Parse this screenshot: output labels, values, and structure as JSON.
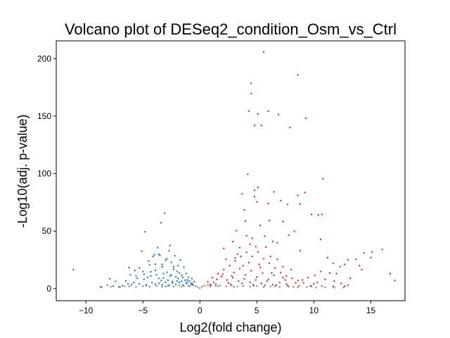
{
  "chart_data": {
    "type": "scatter",
    "title": "Volcano plot of DESeq2_condition_Osm_vs_Ctrl",
    "xlabel": "Log2(fold change)",
    "ylabel": "-Log10(adj. p-value)",
    "xlim": [
      -12.6,
      18.0
    ],
    "ylim": [
      -10.5,
      215.5
    ],
    "xticks": [
      -10,
      -5,
      0,
      5,
      10,
      15
    ],
    "yticks": [
      0,
      50,
      100,
      150,
      200
    ],
    "grid": false,
    "legend": "none",
    "colors": {
      "down": "#1f77b4",
      "up": "#d62728",
      "ns": "#808080"
    },
    "series": [
      {
        "key": "ns",
        "color": "#808080",
        "points": [
          [
            -8.6,
            1.0
          ],
          [
            -7.8,
            1.5
          ],
          [
            -7.0,
            1.2
          ],
          [
            -6.2,
            1.8
          ],
          [
            -5.6,
            1.4
          ],
          [
            -5.0,
            2.0
          ],
          [
            -4.4,
            1.5
          ],
          [
            -3.8,
            2.2
          ],
          [
            -3.3,
            1.6
          ],
          [
            -2.8,
            2.5
          ],
          [
            -2.3,
            1.9
          ],
          [
            -1.8,
            2.7
          ],
          [
            -1.4,
            2.2
          ],
          [
            -1.0,
            2.8
          ],
          [
            -0.7,
            3.0
          ],
          [
            -0.4,
            2.3
          ],
          [
            -0.2,
            1.4
          ],
          [
            0.0,
            0.5
          ],
          [
            0.2,
            1.6
          ],
          [
            0.4,
            2.5
          ],
          [
            0.7,
            3.1
          ],
          [
            1.0,
            2.9
          ],
          [
            1.4,
            2.4
          ],
          [
            1.8,
            2.8
          ],
          [
            2.3,
            2.0
          ],
          [
            2.8,
            2.6
          ],
          [
            3.3,
            1.8
          ],
          [
            3.8,
            2.3
          ],
          [
            4.4,
            1.6
          ],
          [
            5.0,
            2.1
          ],
          [
            5.6,
            1.4
          ],
          [
            6.2,
            1.9
          ],
          [
            7.0,
            1.3
          ],
          [
            7.8,
            1.7
          ],
          [
            8.6,
            1.1
          ],
          [
            9.4,
            1.4
          ],
          [
            10.2,
            0.9
          ],
          [
            11.0,
            1.2
          ],
          [
            11.8,
            0.8
          ],
          [
            12.6,
            1.0
          ],
          [
            -6.6,
            2.1
          ],
          [
            -4.7,
            2.4
          ],
          [
            -3.0,
            2.0
          ],
          [
            -1.6,
            1.5
          ],
          [
            -0.9,
            1.9
          ],
          [
            0.9,
            1.7
          ],
          [
            1.6,
            2.0
          ],
          [
            3.0,
            1.4
          ],
          [
            4.7,
            2.4
          ],
          [
            6.6,
            2.0
          ],
          [
            8.2,
            1.6
          ],
          [
            9.8,
            1.8
          ]
        ]
      },
      {
        "key": "down",
        "color": "#1f77b4",
        "points": [
          [
            -11.1,
            16.5
          ],
          [
            -8.7,
            1.5
          ],
          [
            -8.1,
            3.0
          ],
          [
            -7.9,
            8.4
          ],
          [
            -7.4,
            6.4
          ],
          [
            -7.1,
            1.6
          ],
          [
            -6.5,
            6.5
          ],
          [
            -6.3,
            4.0
          ],
          [
            -6.2,
            18.3
          ],
          [
            -5.8,
            5.3
          ],
          [
            -5.7,
            15.8
          ],
          [
            -5.5,
            9.0
          ],
          [
            -5.1,
            32.6
          ],
          [
            -5.0,
            14.8
          ],
          [
            -4.9,
            12.4
          ],
          [
            -4.8,
            49.4
          ],
          [
            -4.6,
            9.7
          ],
          [
            -4.4,
            20.6
          ],
          [
            -4.3,
            14.6
          ],
          [
            -4.0,
            29.5
          ],
          [
            -3.9,
            21.2
          ],
          [
            -3.8,
            11.9
          ],
          [
            -3.7,
            35.6
          ],
          [
            -3.6,
            8.9
          ],
          [
            -3.5,
            28.9
          ],
          [
            -3.4,
            57.2
          ],
          [
            -3.3,
            18.9
          ],
          [
            -3.2,
            9.2
          ],
          [
            -3.1,
            65.6
          ],
          [
            -3.0,
            24.7
          ],
          [
            -2.9,
            14.1
          ],
          [
            -2.8,
            7.4
          ],
          [
            -2.7,
            32.8
          ],
          [
            -2.6,
            11.1
          ],
          [
            -2.5,
            22.8
          ],
          [
            -2.4,
            6.3
          ],
          [
            -2.3,
            19.1
          ],
          [
            -2.2,
            28.6
          ],
          [
            -2.1,
            10.4
          ],
          [
            -2.0,
            15.0
          ],
          [
            -1.9,
            8.8
          ],
          [
            -1.8,
            13.6
          ],
          [
            -1.7,
            24.9
          ],
          [
            -1.6,
            6.4
          ],
          [
            -1.5,
            9.8
          ],
          [
            -1.4,
            18.6
          ],
          [
            -1.3,
            7.2
          ],
          [
            -1.2,
            13.2
          ],
          [
            -1.1,
            5.6
          ],
          [
            -1.0,
            9.8
          ],
          [
            -0.9,
            6.6
          ],
          [
            -0.8,
            4.3
          ],
          [
            -0.7,
            8.8
          ],
          [
            -0.6,
            3.4
          ],
          [
            -0.5,
            6.0
          ],
          [
            -4.2,
            5.1
          ],
          [
            -3.9,
            3.8
          ],
          [
            -3.6,
            4.6
          ],
          [
            -3.3,
            3.2
          ],
          [
            -3.0,
            5.4
          ],
          [
            -2.7,
            2.9
          ],
          [
            -2.4,
            4.8
          ],
          [
            -2.1,
            3.6
          ],
          [
            -1.8,
            5.4
          ],
          [
            -1.5,
            3.2
          ],
          [
            -1.2,
            4.5
          ],
          [
            -5.3,
            4.1
          ],
          [
            -4.7,
            3.3
          ],
          [
            -6.0,
            3.2
          ],
          [
            -6.8,
            2.4
          ],
          [
            -7.6,
            2.2
          ],
          [
            -2.6,
            37.5
          ],
          [
            -3.6,
            30.0
          ],
          [
            -4.1,
            28.0
          ],
          [
            -2.9,
            26.0
          ],
          [
            -3.3,
            21.0
          ],
          [
            -4.5,
            24.0
          ],
          [
            -2.3,
            17.0
          ],
          [
            -5.3,
            18.0
          ],
          [
            -3.9,
            16.0
          ],
          [
            -1.9,
            20.0
          ],
          [
            -2.5,
            12.0
          ],
          [
            -4.3,
            11.0
          ],
          [
            -1.6,
            11.5
          ],
          [
            -3.2,
            13.0
          ],
          [
            -5.6,
            11.0
          ],
          [
            -6.1,
            12.0
          ],
          [
            -4.9,
            8.0
          ],
          [
            -3.4,
            7.0
          ],
          [
            -2.0,
            6.5
          ],
          [
            -1.1,
            7.5
          ],
          [
            -0.7,
            4.5
          ]
        ]
      },
      {
        "key": "up",
        "color": "#d62728",
        "points": [
          [
            5.6,
            205.8
          ],
          [
            8.6,
            185.9
          ],
          [
            4.5,
            178.5
          ],
          [
            4.5,
            169.7
          ],
          [
            4.3,
            154.3
          ],
          [
            6.0,
            154.3
          ],
          [
            5.1,
            151.9
          ],
          [
            6.9,
            151.4
          ],
          [
            9.3,
            148.2
          ],
          [
            4.8,
            141.9
          ],
          [
            5.4,
            141.9
          ],
          [
            7.9,
            140.1
          ],
          [
            4.2,
            99.5
          ],
          [
            10.8,
            95.5
          ],
          [
            5.1,
            88.0
          ],
          [
            4.8,
            85.5
          ],
          [
            6.5,
            84.1
          ],
          [
            9.2,
            83.5
          ],
          [
            3.7,
            82.4
          ],
          [
            4.8,
            80.0
          ],
          [
            8.6,
            81.0
          ],
          [
            7.1,
            76.5
          ],
          [
            5.0,
            75.3
          ],
          [
            6.0,
            74.0
          ],
          [
            7.7,
            73.2
          ],
          [
            8.8,
            73.7
          ],
          [
            3.9,
            68.4
          ],
          [
            9.8,
            64.5
          ],
          [
            10.4,
            64.1
          ],
          [
            10.7,
            64.5
          ],
          [
            4.0,
            58.7
          ],
          [
            6.1,
            59.4
          ],
          [
            7.3,
            58.4
          ],
          [
            5.3,
            54.9
          ],
          [
            3.2,
            50.4
          ],
          [
            8.3,
            49.8
          ],
          [
            7.8,
            46.4
          ],
          [
            4.6,
            43.7
          ],
          [
            10.6,
            42.8
          ],
          [
            2.9,
            40.9
          ],
          [
            6.8,
            39.8
          ],
          [
            5.8,
            36.0
          ],
          [
            4.4,
            38.7
          ],
          [
            3.5,
            35.7
          ],
          [
            2.1,
            35.0
          ],
          [
            8.8,
            33.0
          ],
          [
            15.1,
            32.0
          ],
          [
            14.4,
            31.0
          ],
          [
            11.2,
            27.0
          ],
          [
            13.0,
            25.0
          ],
          [
            11.7,
            22.0
          ],
          [
            13.7,
            25.5
          ],
          [
            12.3,
            19.0
          ],
          [
            10.6,
            15.0
          ],
          [
            11.4,
            13.5
          ],
          [
            12.7,
            21.0
          ],
          [
            14.2,
            16.5
          ],
          [
            16.7,
            13.0
          ],
          [
            17.1,
            7.0
          ],
          [
            10.1,
            11.5
          ],
          [
            9.5,
            9.5
          ],
          [
            9.0,
            7.5
          ],
          [
            10.3,
            5.5
          ],
          [
            11.8,
            6.5
          ],
          [
            12.4,
            4.5
          ],
          [
            13.0,
            3.0
          ],
          [
            8.4,
            5.0
          ],
          [
            7.6,
            4.0
          ],
          [
            7.0,
            5.5
          ],
          [
            6.4,
            3.5
          ],
          [
            5.9,
            6.5
          ],
          [
            5.4,
            4.5
          ],
          [
            4.9,
            7.5
          ],
          [
            4.4,
            5.5
          ],
          [
            3.9,
            8.5
          ],
          [
            3.4,
            6.5
          ],
          [
            2.9,
            9.5
          ],
          [
            2.4,
            7.5
          ],
          [
            1.9,
            10.5
          ],
          [
            1.5,
            8.0
          ],
          [
            1.2,
            5.5
          ],
          [
            0.9,
            3.5
          ],
          [
            0.7,
            6.0
          ],
          [
            1.1,
            9.5
          ],
          [
            1.6,
            13.0
          ],
          [
            2.1,
            16.5
          ],
          [
            2.6,
            20.0
          ],
          [
            3.1,
            24.0
          ],
          [
            3.6,
            28.0
          ],
          [
            4.1,
            31.5
          ],
          [
            4.6,
            28.0
          ],
          [
            5.1,
            32.0
          ],
          [
            5.6,
            26.0
          ],
          [
            6.1,
            22.0
          ],
          [
            6.6,
            18.0
          ],
          [
            7.1,
            14.0
          ],
          [
            7.6,
            11.0
          ],
          [
            8.1,
            9.0
          ],
          [
            8.6,
            7.0
          ],
          [
            9.1,
            5.0
          ],
          [
            2.3,
            25.5
          ],
          [
            3.3,
            30.0
          ],
          [
            4.3,
            22.5
          ],
          [
            5.3,
            18.5
          ],
          [
            6.3,
            13.5
          ],
          [
            7.3,
            9.5
          ],
          [
            3.0,
            14.0
          ],
          [
            4.0,
            12.0
          ],
          [
            5.0,
            10.0
          ],
          [
            6.0,
            8.0
          ],
          [
            2.0,
            12.5
          ],
          [
            1.4,
            4.0
          ],
          [
            2.7,
            3.5
          ],
          [
            3.7,
            4.5
          ],
          [
            4.7,
            3.2
          ],
          [
            5.7,
            2.8
          ],
          [
            6.7,
            3.0
          ],
          [
            7.7,
            2.6
          ],
          [
            8.7,
            2.5
          ],
          [
            9.7,
            2.3
          ],
          [
            10.7,
            2.2
          ],
          [
            11.7,
            2.0
          ],
          [
            12.7,
            2.0
          ],
          [
            13.2,
            9.0
          ],
          [
            12.0,
            13.0
          ],
          [
            14.0,
            20.0
          ],
          [
            15.0,
            27.0
          ],
          [
            16.0,
            34.0
          ],
          [
            11.0,
            8.0
          ],
          [
            10.0,
            4.0
          ],
          [
            3.5,
            17.5
          ],
          [
            4.5,
            15.5
          ],
          [
            5.5,
            13.5
          ],
          [
            6.5,
            11.5
          ],
          [
            7.5,
            7.5
          ],
          [
            2.5,
            4.8
          ],
          [
            5.2,
            21.0
          ],
          [
            6.2,
            28.0
          ],
          [
            6.8,
            25.5
          ],
          [
            4.9,
            36.5
          ],
          [
            3.8,
            19.8
          ],
          [
            2.8,
            11.0
          ],
          [
            7.3,
            19.0
          ],
          [
            8.0,
            16.5
          ],
          [
            5.7,
            45.5
          ],
          [
            6.4,
            41.0
          ],
          [
            4.1,
            46.0
          ],
          [
            3.1,
            26.5
          ]
        ]
      }
    ]
  }
}
